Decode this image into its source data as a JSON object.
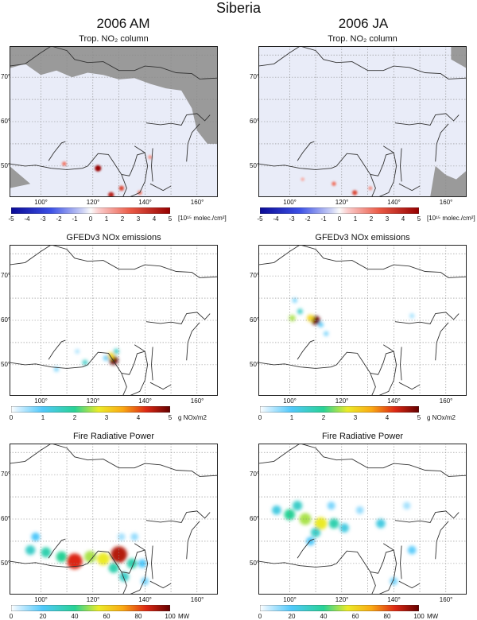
{
  "figure": {
    "title": "Siberia",
    "columns": [
      "2006 AM",
      "2006 JA"
    ]
  },
  "colors": {
    "coast": "#333333",
    "ocean_masked": "#9a9a9a",
    "no2_background": "#e9ecf8",
    "grid": "#888888"
  },
  "axes": {
    "lon_ticks": [
      "100°",
      "120°",
      "140°",
      "160°"
    ],
    "lat_ticks": [
      "70°",
      "60°",
      "50°"
    ]
  },
  "chart_data": [
    {
      "type": "heatmap",
      "row": "Trop. NO2 column",
      "column": "2006 AM",
      "title": "Trop. NO₂ column",
      "colorbar": {
        "ticks": [
          "-5",
          "-4",
          "-3",
          "-2",
          "-1",
          "0",
          "1",
          "2",
          "3",
          "4",
          "5"
        ],
        "unit": "[10¹⁵ molec./cm²]",
        "range": [
          -5,
          5
        ]
      },
      "hotspots": [
        {
          "lon": 122,
          "lat": 49.5,
          "value": 5
        },
        {
          "lon": 131,
          "lat": 45,
          "value": 3
        },
        {
          "lon": 127,
          "lat": 43.5,
          "value": 4
        },
        {
          "lon": 109,
          "lat": 50.5,
          "value": 2
        },
        {
          "lon": 138,
          "lat": 44,
          "value": 2
        },
        {
          "lon": 142,
          "lat": 52,
          "value": 1.5
        }
      ]
    },
    {
      "type": "heatmap",
      "row": "Trop. NO2 column",
      "column": "2006 JA",
      "title": "Trop. NO₂ column",
      "colorbar": {
        "ticks": [
          "-5",
          "-4",
          "-3",
          "-2",
          "-1",
          "0",
          "1",
          "2",
          "3",
          "4",
          "5"
        ],
        "unit": "[10¹⁵ molec./cm²]",
        "range": [
          -5,
          5
        ]
      },
      "hotspots": [
        {
          "lon": 125,
          "lat": 44,
          "value": 3
        },
        {
          "lon": 117,
          "lat": 46,
          "value": 2
        },
        {
          "lon": 131,
          "lat": 45,
          "value": 1.5
        },
        {
          "lon": 105,
          "lat": 47,
          "value": 1
        }
      ]
    },
    {
      "type": "heatmap",
      "row": "GFEDv3 NOx emissions",
      "column": "2006 AM",
      "title": "GFEDv3 NOx emissions",
      "colorbar": {
        "ticks": [
          "0",
          "1",
          "2",
          "3",
          "4",
          "5"
        ],
        "unit": "g NOx/m2",
        "range": [
          0,
          5
        ]
      },
      "hotspots": [
        {
          "lon": 128,
          "lat": 51,
          "value": 5
        },
        {
          "lon": 127,
          "lat": 52,
          "value": 3
        },
        {
          "lon": 129,
          "lat": 53,
          "value": 1.5
        },
        {
          "lon": 125,
          "lat": 51.5,
          "value": 1
        },
        {
          "lon": 117,
          "lat": 50.5,
          "value": 1.5
        },
        {
          "lon": 106,
          "lat": 49,
          "value": 0.8
        },
        {
          "lon": 114,
          "lat": 53,
          "value": 0.5
        }
      ]
    },
    {
      "type": "heatmap",
      "row": "GFEDv3 NOx emissions",
      "column": "2006 JA",
      "title": "GFEDv3 NOx emissions",
      "colorbar": {
        "ticks": [
          "0",
          "1",
          "2",
          "3",
          "4",
          "5"
        ],
        "unit": "g NOx/m2",
        "range": [
          0,
          5
        ]
      },
      "hotspots": [
        {
          "lon": 110,
          "lat": 60,
          "value": 5
        },
        {
          "lon": 108,
          "lat": 60.5,
          "value": 3
        },
        {
          "lon": 101,
          "lat": 60.5,
          "value": 2.5
        },
        {
          "lon": 104,
          "lat": 62,
          "value": 1.5
        },
        {
          "lon": 112,
          "lat": 59,
          "value": 1
        },
        {
          "lon": 114,
          "lat": 57,
          "value": 0.8
        },
        {
          "lon": 102,
          "lat": 64.5,
          "value": 0.8
        },
        {
          "lon": 147,
          "lat": 61,
          "value": 0.6
        }
      ]
    },
    {
      "type": "heatmap",
      "row": "Fire Radiative Power",
      "column": "2006 AM",
      "title": "Fire Radiative Power",
      "colorbar": {
        "ticks": [
          "0",
          "20",
          "40",
          "60",
          "80",
          "100"
        ],
        "unit": "MW",
        "range": [
          0,
          100
        ]
      },
      "hotspots": [
        {
          "lon": 130,
          "lat": 52,
          "value": 90
        },
        {
          "lon": 113,
          "lat": 50.5,
          "value": 85
        },
        {
          "lon": 124,
          "lat": 51,
          "value": 55
        },
        {
          "lon": 119,
          "lat": 51.5,
          "value": 50
        },
        {
          "lon": 108,
          "lat": 51.5,
          "value": 40
        },
        {
          "lon": 102,
          "lat": 52.5,
          "value": 35
        },
        {
          "lon": 96,
          "lat": 53,
          "value": 30
        },
        {
          "lon": 135,
          "lat": 50,
          "value": 35
        },
        {
          "lon": 132,
          "lat": 47,
          "value": 30
        },
        {
          "lon": 128,
          "lat": 49,
          "value": 35
        },
        {
          "lon": 139,
          "lat": 50,
          "value": 20
        },
        {
          "lon": 98,
          "lat": 56,
          "value": 20
        },
        {
          "lon": 136,
          "lat": 56,
          "value": 12
        },
        {
          "lon": 131,
          "lat": 56,
          "value": 10
        },
        {
          "lon": 140,
          "lat": 46,
          "value": 15
        }
      ]
    },
    {
      "type": "heatmap",
      "row": "Fire Radiative Power",
      "column": "2006 JA",
      "title": "Fire Radiative Power",
      "colorbar": {
        "ticks": [
          "0",
          "20",
          "40",
          "60",
          "80",
          "100"
        ],
        "unit": "MW",
        "range": [
          0,
          100
        ]
      },
      "hotspots": [
        {
          "lon": 112,
          "lat": 59,
          "value": 55
        },
        {
          "lon": 106,
          "lat": 60,
          "value": 50
        },
        {
          "lon": 100,
          "lat": 61,
          "value": 40
        },
        {
          "lon": 117,
          "lat": 59,
          "value": 35
        },
        {
          "lon": 110,
          "lat": 57,
          "value": 30
        },
        {
          "lon": 103,
          "lat": 63,
          "value": 30
        },
        {
          "lon": 95,
          "lat": 62,
          "value": 25
        },
        {
          "lon": 121,
          "lat": 58,
          "value": 25
        },
        {
          "lon": 108,
          "lat": 55,
          "value": 20
        },
        {
          "lon": 116,
          "lat": 63,
          "value": 15
        },
        {
          "lon": 135,
          "lat": 59,
          "value": 25
        },
        {
          "lon": 127,
          "lat": 62,
          "value": 12
        },
        {
          "lon": 147,
          "lat": 53,
          "value": 18
        },
        {
          "lon": 140,
          "lat": 46,
          "value": 15
        },
        {
          "lon": 145,
          "lat": 63,
          "value": 10
        }
      ]
    }
  ]
}
